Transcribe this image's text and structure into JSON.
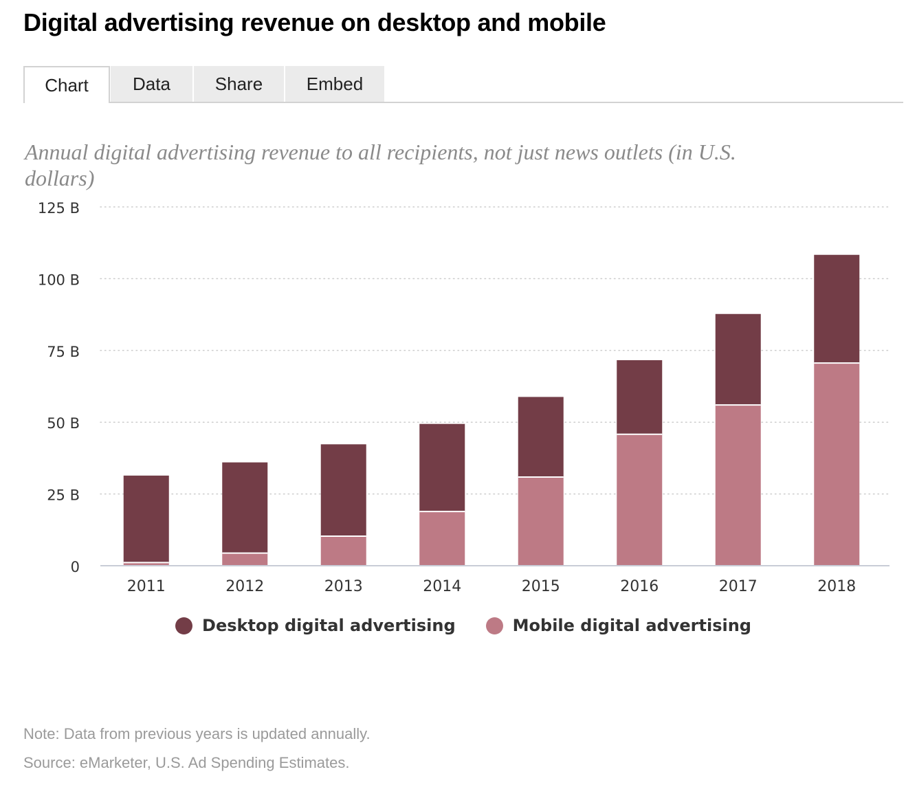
{
  "title": "Digital advertising revenue on desktop and mobile",
  "tabs": [
    {
      "label": "Chart",
      "active": true
    },
    {
      "label": "Data",
      "active": false
    },
    {
      "label": "Share",
      "active": false
    },
    {
      "label": "Embed",
      "active": false
    }
  ],
  "subtitle": "Annual digital advertising revenue to all recipients, not just news outlets (in U.S. dollars)",
  "colors": {
    "desktop": "#733d47",
    "mobile": "#bd7a85",
    "grid": "#cccccc",
    "axis": "#c8ccd6",
    "tick_text": "#333333"
  },
  "chart_data": {
    "type": "bar",
    "stacked": true,
    "categories": [
      "2011",
      "2012",
      "2013",
      "2014",
      "2015",
      "2016",
      "2017",
      "2018"
    ],
    "series": [
      {
        "name": "Mobile digital advertising",
        "color": "#bd7a85",
        "values": [
          1.1,
          4.4,
          10.3,
          18.9,
          30.9,
          45.8,
          56.0,
          70.6
        ]
      },
      {
        "name": "Desktop digital advertising",
        "color": "#733d47",
        "values": [
          30.3,
          31.6,
          32.0,
          30.5,
          27.9,
          25.8,
          31.7,
          37.7
        ]
      }
    ],
    "ylim": [
      0,
      125
    ],
    "yticks": [
      0,
      25,
      50,
      75,
      100,
      125
    ],
    "ytick_labels": [
      "0",
      "25 B",
      "50 B",
      "75 B",
      "100 B",
      "125 B"
    ],
    "grid": true,
    "legend_position": "bottom-center",
    "legend_order": [
      "Desktop digital advertising",
      "Mobile digital advertising"
    ]
  },
  "note": "Note: Data from previous years is updated annually.",
  "source": "Source: eMarketer, U.S. Ad Spending Estimates."
}
